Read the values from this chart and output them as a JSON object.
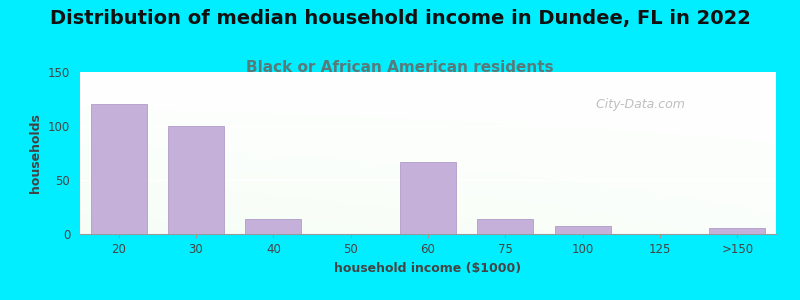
{
  "title": "Distribution of median household income in Dundee, FL in 2022",
  "subtitle": "Black or African American residents",
  "xlabel": "household income ($1000)",
  "ylabel": "households",
  "categories": [
    "20",
    "30",
    "40",
    "50",
    "60",
    "75",
    "100",
    "125",
    ">150"
  ],
  "values": [
    120,
    100,
    14,
    0,
    67,
    14,
    7,
    0,
    6
  ],
  "bar_color": "#c4b0d8",
  "bar_edge_color": "#b09cc8",
  "ylim": [
    0,
    150
  ],
  "yticks": [
    0,
    50,
    100,
    150
  ],
  "outer_background": "#00eeff",
  "title_fontsize": 14,
  "subtitle_fontsize": 11,
  "axis_label_fontsize": 9,
  "watermark_text": "  City-Data.com",
  "subtitle_color": "#5a7a7a",
  "title_color": "#111111",
  "label_color": "#444444"
}
